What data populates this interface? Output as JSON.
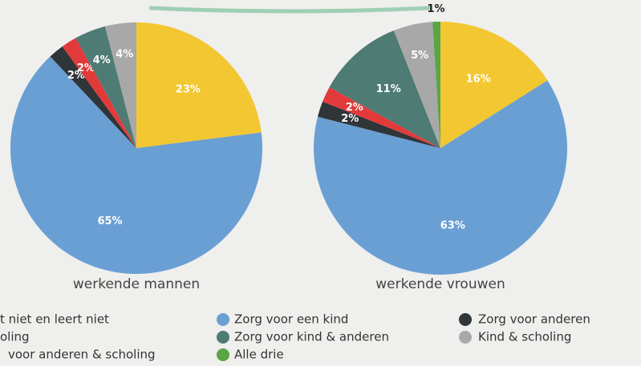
{
  "chart_data": [
    {
      "type": "pie",
      "title": "werkende mannen",
      "categories": [
        "Werkt",
        "Zorg voor een kind",
        "Zorg voor anderen",
        "Zorg voor anderen & scholing",
        "Zorg voor kind & anderen",
        "Kind & scholing"
      ],
      "values": [
        23,
        65,
        2,
        2,
        4,
        4
      ],
      "value_labels": [
        "23%",
        "65%",
        "2%",
        "2%",
        "4%",
        "4%"
      ],
      "colors": [
        "#f2c731",
        "#6a9fd4",
        "#2f3538",
        "#e23a3a",
        "#4e7b74",
        "#a8a8a8"
      ]
    },
    {
      "type": "pie",
      "title": "werkende vrouwen",
      "categories": [
        "Werkt",
        "Zorg voor een kind",
        "Zorg voor anderen",
        "Zorg voor anderen & scholing",
        "Zorg voor kind & anderen",
        "Kind & scholing",
        "Alle drie"
      ],
      "values": [
        16,
        63,
        2,
        2,
        11,
        5,
        1
      ],
      "value_labels": [
        "16%",
        "63%",
        "2%",
        "2%",
        "11%",
        "5%",
        "1%"
      ],
      "colors": [
        "#f2c731",
        "#6a9fd4",
        "#2f3538",
        "#e23a3a",
        "#4e7b74",
        "#a8a8a8",
        "#5aa545"
      ]
    }
  ],
  "legend": [
    {
      "name": "t niet en leert niet"
    },
    {
      "name": "oling"
    },
    {
      "name": "voor anderen & scholing"
    },
    {
      "name": "Zorg voor een kind",
      "color": "#6a9fd4"
    },
    {
      "name": "Zorg voor kind & anderen",
      "color": "#4e7b74"
    },
    {
      "name": "Alle drie",
      "color": "#5aa545"
    },
    {
      "name": "Zorg voor anderen",
      "color": "#2f3538"
    },
    {
      "name": "Kind & scholing",
      "color": "#a8a8a8"
    }
  ]
}
